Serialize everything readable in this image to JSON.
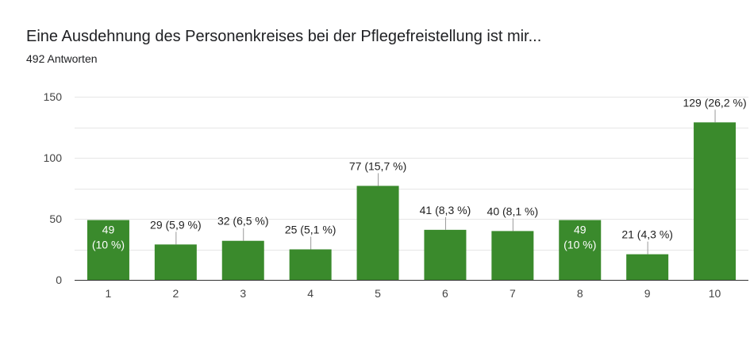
{
  "header": {
    "title": "Eine Ausdehnung des Personenkreises bei der Pflegefreistellung ist mir...",
    "subtitle": "492 Antworten"
  },
  "colors": {
    "bar": "#3a8a2c",
    "grid": "#e6e6e6",
    "axis": "#333333",
    "leader": "#999999"
  },
  "chart_data": {
    "type": "bar",
    "title": "Eine Ausdehnung des Personenkreises bei der Pflegefreistellung ist mir...",
    "categories": [
      "1",
      "2",
      "3",
      "4",
      "5",
      "6",
      "7",
      "8",
      "9",
      "10"
    ],
    "values": [
      49,
      29,
      32,
      25,
      77,
      41,
      40,
      49,
      21,
      129
    ],
    "labels": [
      [
        "49",
        "(10 %)"
      ],
      [
        "29 (5,9 %)"
      ],
      [
        "32 (6,5 %)"
      ],
      [
        "25 (5,1 %)"
      ],
      [
        "77 (15,7 %)"
      ],
      [
        "41 (8,3 %)"
      ],
      [
        "40 (8,1 %)"
      ],
      [
        "49",
        "(10 %)"
      ],
      [
        "21 (4,3 %)"
      ],
      [
        "129 (26,2 %)"
      ]
    ],
    "label_inside": [
      true,
      false,
      false,
      false,
      false,
      false,
      false,
      true,
      false,
      false
    ],
    "ylim": [
      0,
      150
    ],
    "yticks": [
      0,
      50,
      100,
      150
    ],
    "grid": true,
    "xlabel": "",
    "ylabel": ""
  }
}
